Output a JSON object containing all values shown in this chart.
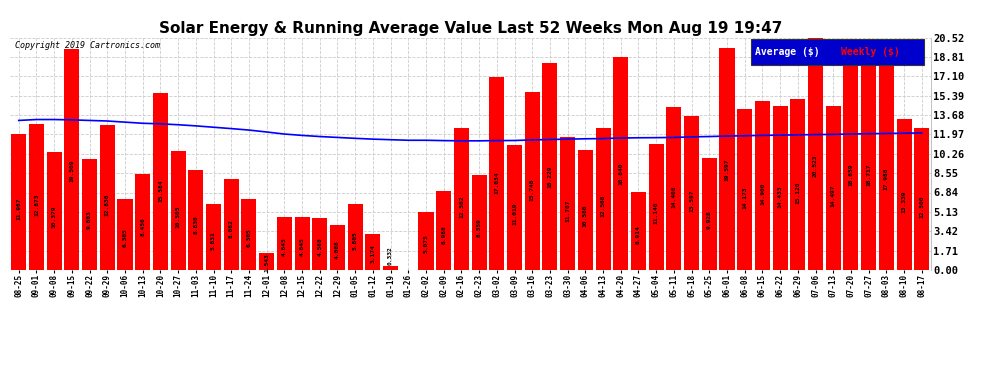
{
  "title": "Solar Energy & Running Average Value Last 52 Weeks Mon Aug 19 19:47",
  "copyright": "Copyright 2019 Cartronics.com",
  "bar_color": "#FF0000",
  "average_line_color": "#0000FF",
  "background_color": "#FFFFFF",
  "grid_color": "#CCCCCC",
  "ylabel_right": [
    "20.52",
    "18.81",
    "17.10",
    "15.39",
    "13.68",
    "11.97",
    "10.26",
    "8.55",
    "6.84",
    "5.13",
    "3.42",
    "1.71",
    "0.00"
  ],
  "ymax": 20.52,
  "ymin": 0.0,
  "dates": [
    "08-25",
    "09-01",
    "09-08",
    "09-15",
    "09-22",
    "09-29",
    "10-06",
    "10-13",
    "10-20",
    "10-27",
    "11-03",
    "11-10",
    "11-17",
    "11-24",
    "12-01",
    "12-08",
    "12-15",
    "12-22",
    "12-29",
    "01-05",
    "01-12",
    "01-19",
    "01-26",
    "02-02",
    "02-09",
    "02-16",
    "02-23",
    "03-02",
    "03-09",
    "03-16",
    "03-23",
    "03-30",
    "04-06",
    "04-13",
    "04-20",
    "04-27",
    "05-04",
    "05-11",
    "05-18",
    "05-25",
    "06-01",
    "06-08",
    "06-15",
    "06-22",
    "06-29",
    "07-06",
    "07-13",
    "07-20",
    "07-27",
    "08-03",
    "08-10",
    "08-17"
  ],
  "weekly_values": [
    11.967,
    12.873,
    10.379,
    19.509,
    9.803,
    12.836,
    6.305,
    8.456,
    15.584,
    10.505,
    8.83,
    5.831,
    8.062,
    6.305,
    1.543,
    4.645,
    4.645,
    4.568,
    4.008,
    5.805,
    3.174,
    0.332,
    0.0,
    5.075,
    6.988,
    12.502,
    8.359,
    17.034,
    11.019,
    15.748,
    18.229,
    11.707,
    10.58,
    12.508,
    18.84,
    6.914,
    11.14,
    14.408,
    13.597,
    9.928,
    19.597,
    14.173,
    14.9,
    14.433,
    15.12,
    20.523,
    14.497,
    18.659,
    18.717,
    17.988,
    13.339,
    12.5
  ],
  "average_values": [
    13.2,
    13.28,
    13.28,
    13.25,
    13.2,
    13.15,
    13.05,
    12.95,
    12.9,
    12.82,
    12.72,
    12.6,
    12.48,
    12.35,
    12.18,
    12.0,
    11.88,
    11.78,
    11.7,
    11.62,
    11.55,
    11.5,
    11.45,
    11.45,
    11.42,
    11.4,
    11.4,
    11.42,
    11.43,
    11.48,
    11.52,
    11.55,
    11.58,
    11.6,
    11.65,
    11.67,
    11.68,
    11.7,
    11.75,
    11.78,
    11.82,
    11.85,
    11.88,
    11.9,
    11.93,
    11.95,
    11.97,
    12.0,
    12.03,
    12.05,
    12.07,
    12.1
  ],
  "title_fontsize": 11,
  "bar_label_fontsize": 4.5,
  "xtick_fontsize": 5.5,
  "ytick_fontsize": 7.5
}
